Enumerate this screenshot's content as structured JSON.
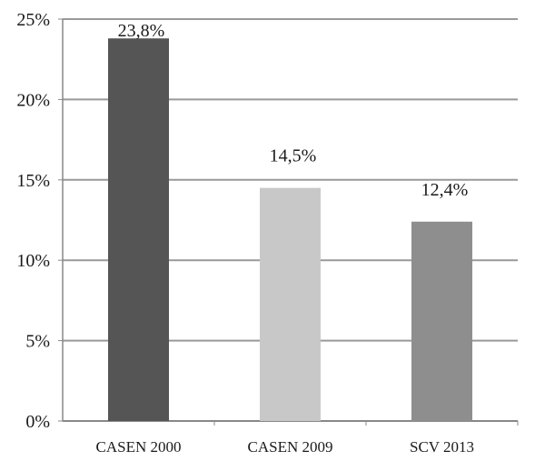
{
  "chart_data": {
    "type": "bar",
    "title": "",
    "xlabel": "",
    "ylabel": "",
    "categories": [
      "CASEN 2000",
      "CASEN 2009",
      "SCV 2013"
    ],
    "values": [
      23.8,
      14.5,
      12.4
    ],
    "data_labels": [
      "23,8%",
      "14,5%",
      "12,4%"
    ],
    "bar_colors": [
      "#555555",
      "#c8c8c8",
      "#8e8e8e"
    ],
    "ylim": [
      0,
      25
    ],
    "y_ticks": [
      0,
      5,
      10,
      15,
      20,
      25
    ],
    "y_tick_labels": [
      "0%",
      "5%",
      "10%",
      "15%",
      "20%",
      "25%"
    ],
    "grid": true,
    "grid_color": "#999999",
    "legend": "none"
  }
}
